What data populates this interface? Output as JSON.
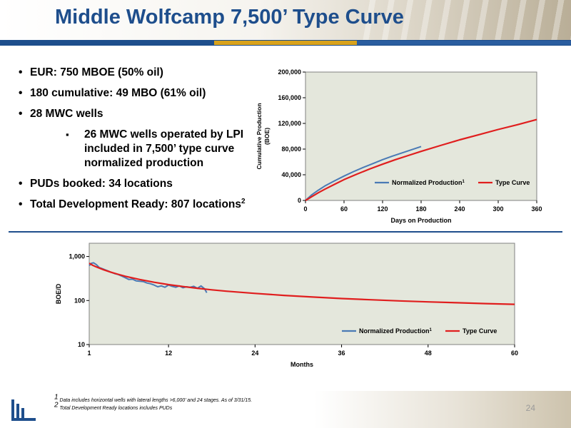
{
  "slide": {
    "title": "Middle Wolfcamp 7,500’ Type Curve",
    "page_number": "24",
    "logo": "laredo-logo"
  },
  "bullets": [
    {
      "text": "EUR:  750 MBOE (50% oil)"
    },
    {
      "text": "180 cumulative:  49 MBO (61% oil)"
    },
    {
      "text": "28 MWC wells"
    },
    {
      "sub": true,
      "text": "26 MWC wells operated by LPI included in 7,500’ type curve normalized production"
    },
    {
      "text": "PUDs booked:  34 locations"
    },
    {
      "text": "Total Development Ready:  807 locations",
      "sup": "2"
    }
  ],
  "footnotes": [
    {
      "sup": "1",
      "text": " Data includes horizontal wells with lateral lengths >6,000’ and 24 stages.  As of 3/31/15."
    },
    {
      "sup": "2",
      "text": " Total Development Ready locations includes PUDs"
    }
  ],
  "colors": {
    "title": "#1e4e8c",
    "normalized": "#4a7ab5",
    "type_curve": "#e01e1e",
    "plot_bg": "#e4e7dc"
  },
  "chart_data": [
    {
      "type": "line",
      "title": "",
      "xlabel": "Days on Production",
      "ylabel_lines": [
        "Cumulative Production",
        "(BOE)"
      ],
      "xlim": [
        0,
        360
      ],
      "ylim": [
        0,
        200000
      ],
      "x_ticks": [
        0,
        60,
        120,
        180,
        240,
        300,
        360
      ],
      "y_ticks": [
        0,
        40000,
        80000,
        120000,
        160000,
        200000
      ],
      "x_tick_labels": [
        "0",
        "60",
        "120",
        "180",
        "240",
        "300",
        "360"
      ],
      "y_tick_labels": [
        "0",
        "40,000",
        "80,000",
        "120,000",
        "160,000",
        "200,000"
      ],
      "legend_position": "bottom-right",
      "series": [
        {
          "name": "Normalized Production",
          "sup": "1",
          "x": [
            0,
            10,
            20,
            30,
            45,
            60,
            75,
            90,
            105,
            120,
            135,
            150,
            165,
            180
          ],
          "y": [
            0,
            9000,
            16000,
            22500,
            30500,
            38000,
            45000,
            51500,
            57500,
            63500,
            69000,
            74000,
            79000,
            84000
          ]
        },
        {
          "name": "Type Curve",
          "x": [
            0,
            10,
            20,
            30,
            45,
            60,
            80,
            100,
            120,
            140,
            160,
            180,
            210,
            240,
            270,
            300,
            330,
            360
          ],
          "y": [
            0,
            6000,
            12000,
            17500,
            25000,
            32500,
            41000,
            49000,
            56500,
            63500,
            70000,
            76500,
            85500,
            94500,
            102500,
            110500,
            118000,
            126000
          ]
        }
      ]
    },
    {
      "type": "line",
      "title": "",
      "xlabel": "Months",
      "ylabel": "BOE/D",
      "y_scale": "log",
      "xlim": [
        1,
        60
      ],
      "ylim": [
        10,
        2000
      ],
      "x_ticks": [
        1,
        12,
        24,
        36,
        48,
        60
      ],
      "y_ticks": [
        10,
        100,
        1000
      ],
      "x_tick_labels": [
        "1",
        "12",
        "24",
        "36",
        "48",
        "60"
      ],
      "y_tick_labels": [
        "10",
        "100",
        "1,000"
      ],
      "legend_position": "bottom-right",
      "series": [
        {
          "name": "Normalized Production",
          "sup": "1",
          "x": [
            1,
            1.3,
            1.6,
            2,
            2.4,
            2.8,
            3.2,
            3.6,
            4,
            4.5,
            5,
            5.5,
            6,
            6.5,
            7,
            7.5,
            8,
            8.5,
            9,
            9.5,
            10,
            10.5,
            11,
            11.5,
            12,
            12.5,
            13,
            13.5,
            14,
            14.5,
            15,
            15.5,
            16,
            16.5,
            17,
            17.3
          ],
          "y": [
            620,
            700,
            720,
            650,
            560,
            530,
            500,
            470,
            440,
            410,
            390,
            360,
            330,
            300,
            305,
            280,
            275,
            270,
            250,
            240,
            225,
            205,
            215,
            200,
            225,
            210,
            200,
            215,
            195,
            205,
            200,
            210,
            190,
            215,
            185,
            150
          ]
        },
        {
          "name": "Type Curve",
          "x": [
            1,
            1.5,
            2,
            3,
            4,
            5,
            6,
            8,
            10,
            12,
            14,
            16,
            18,
            20,
            24,
            28,
            32,
            36,
            40,
            44,
            48,
            52,
            56,
            60
          ],
          "y": [
            700,
            630,
            580,
            500,
            440,
            395,
            355,
            300,
            260,
            230,
            208,
            190,
            175,
            163,
            145,
            131,
            120,
            111,
            104,
            98,
            93,
            89,
            85,
            82
          ]
        }
      ]
    }
  ]
}
